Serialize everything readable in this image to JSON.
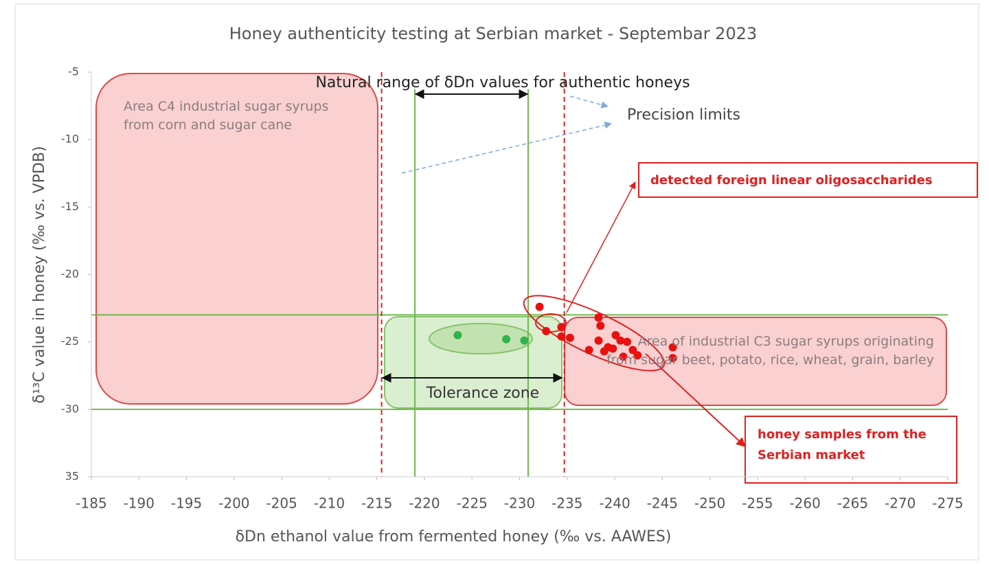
{
  "chart_data": {
    "type": "scatter",
    "title": "Honey authenticity testing at Serbian market - Septembar 2023",
    "x_label": "δDn ethanol value from fermented honey (‰ vs. AAWES)",
    "y_label": "δ¹³C value in honey (‰ vs. VPDB)",
    "xlim": [
      -185,
      -275
    ],
    "ylim": [
      -5,
      -35
    ],
    "xticks": [
      -185,
      -190,
      -195,
      -200,
      -205,
      -210,
      -215,
      -220,
      -225,
      -230,
      -235,
      -240,
      -245,
      -250,
      -255,
      -260,
      -265,
      -270,
      -275
    ],
    "yticks": [
      -5,
      -10,
      -15,
      -20,
      -25,
      -30,
      {
        "value": -35,
        "label": "35"
      }
    ],
    "grid": false,
    "reference_lines": {
      "color": "#6fb84f",
      "x": [
        -219,
        -230.9
      ],
      "y": [
        -23,
        -30
      ]
    },
    "precision_limits": {
      "color": "#e02020",
      "x": [
        -215.5,
        -234.7
      ]
    },
    "series": [
      {
        "color": "#2fb34a",
        "x": [
          -223.5,
          -228.6,
          -230.5
        ],
        "values": [
          -24.5,
          -24.8,
          -24.9
        ]
      },
      {
        "color": "#e81010",
        "x": [
          -232.1,
          -232.8,
          -234.4,
          -234.4,
          -235.3,
          -237.3,
          -238.3,
          -238.5,
          -238.3,
          -238.9,
          -239.3,
          -239.8,
          -240.1,
          -240.6,
          -240.9,
          -241.3,
          -241.9,
          -242.4,
          -246.1,
          -246.1
        ],
        "values": [
          -22.4,
          -24.2,
          -23.9,
          -24.6,
          -24.7,
          -25.6,
          -23.2,
          -23.8,
          -24.9,
          -25.7,
          -25.4,
          -25.5,
          -24.5,
          -24.9,
          -26.1,
          -25.0,
          -25.6,
          -26.0,
          -25.4,
          -26.2
        ]
      }
    ],
    "annotations": {
      "natural_range": "Natural range of δDn values for authentic honeys",
      "precision_limits": "Precision limits",
      "c4_area": "Area C4 industrial sugar syrups from corn and sugar cane",
      "c3_area": "Area of industrial C3 sugar syrups originating from sugar beet, potato, rice, wheat, grain, barley",
      "tolerance_zone": "Tolerance zone",
      "oligosaccharides": "detected foreign linear oligosaccharides",
      "serbian_samples": "honey samples from the Serbian market"
    }
  }
}
